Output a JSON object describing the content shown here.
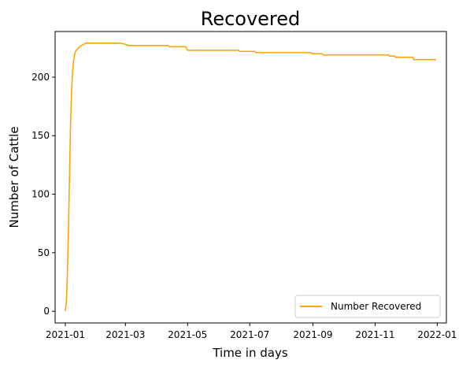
{
  "chart_data": {
    "type": "line",
    "title": "Recovered",
    "xlabel": "Time in days",
    "ylabel": "Number of Cattle",
    "xlim": [
      "2020-12-22",
      "2022-01-10"
    ],
    "ylim": [
      -10,
      239
    ],
    "x_ticks": [
      "2021-01-01",
      "2021-03-01",
      "2021-05-01",
      "2021-07-01",
      "2021-09-01",
      "2021-11-01",
      "2022-01-01"
    ],
    "x_tick_labels": [
      "2021-01",
      "2021-03",
      "2021-05",
      "2021-07",
      "2021-09",
      "2021-11",
      "2022-01"
    ],
    "y_ticks": [
      0,
      50,
      100,
      150,
      200
    ],
    "y_tick_labels": [
      "0",
      "50",
      "100",
      "150",
      "200"
    ],
    "grid": false,
    "legend_position": "lower-right",
    "series": [
      {
        "name": "Number Recovered",
        "color": "#ffa500",
        "x": [
          "2021-01-01",
          "2021-01-02",
          "2021-01-03",
          "2021-01-04",
          "2021-01-05",
          "2021-01-06",
          "2021-01-07",
          "2021-01-08",
          "2021-01-09",
          "2021-01-10",
          "2021-01-11",
          "2021-01-12",
          "2021-01-13",
          "2021-01-15",
          "2021-01-17",
          "2021-01-19",
          "2021-01-21",
          "2021-02-25",
          "2021-03-01",
          "2021-03-05",
          "2021-04-12",
          "2021-04-13",
          "2021-04-29",
          "2021-05-01",
          "2021-06-20",
          "2021-06-21",
          "2021-07-06",
          "2021-07-07",
          "2021-08-30",
          "2021-08-31",
          "2021-09-10",
          "2021-09-11",
          "2021-11-14",
          "2021-11-15",
          "2021-11-20",
          "2021-11-21",
          "2021-12-08",
          "2021-12-09",
          "2021-12-31"
        ],
        "y": [
          0,
          8,
          30,
          65,
          110,
          155,
          185,
          203,
          213,
          219,
          222,
          223,
          224,
          226,
          227,
          228,
          229,
          229,
          228,
          227,
          227,
          226,
          226,
          223,
          223,
          222,
          222,
          221,
          221,
          220,
          220,
          219,
          219,
          218,
          218,
          217,
          217,
          215,
          215
        ]
      }
    ]
  }
}
